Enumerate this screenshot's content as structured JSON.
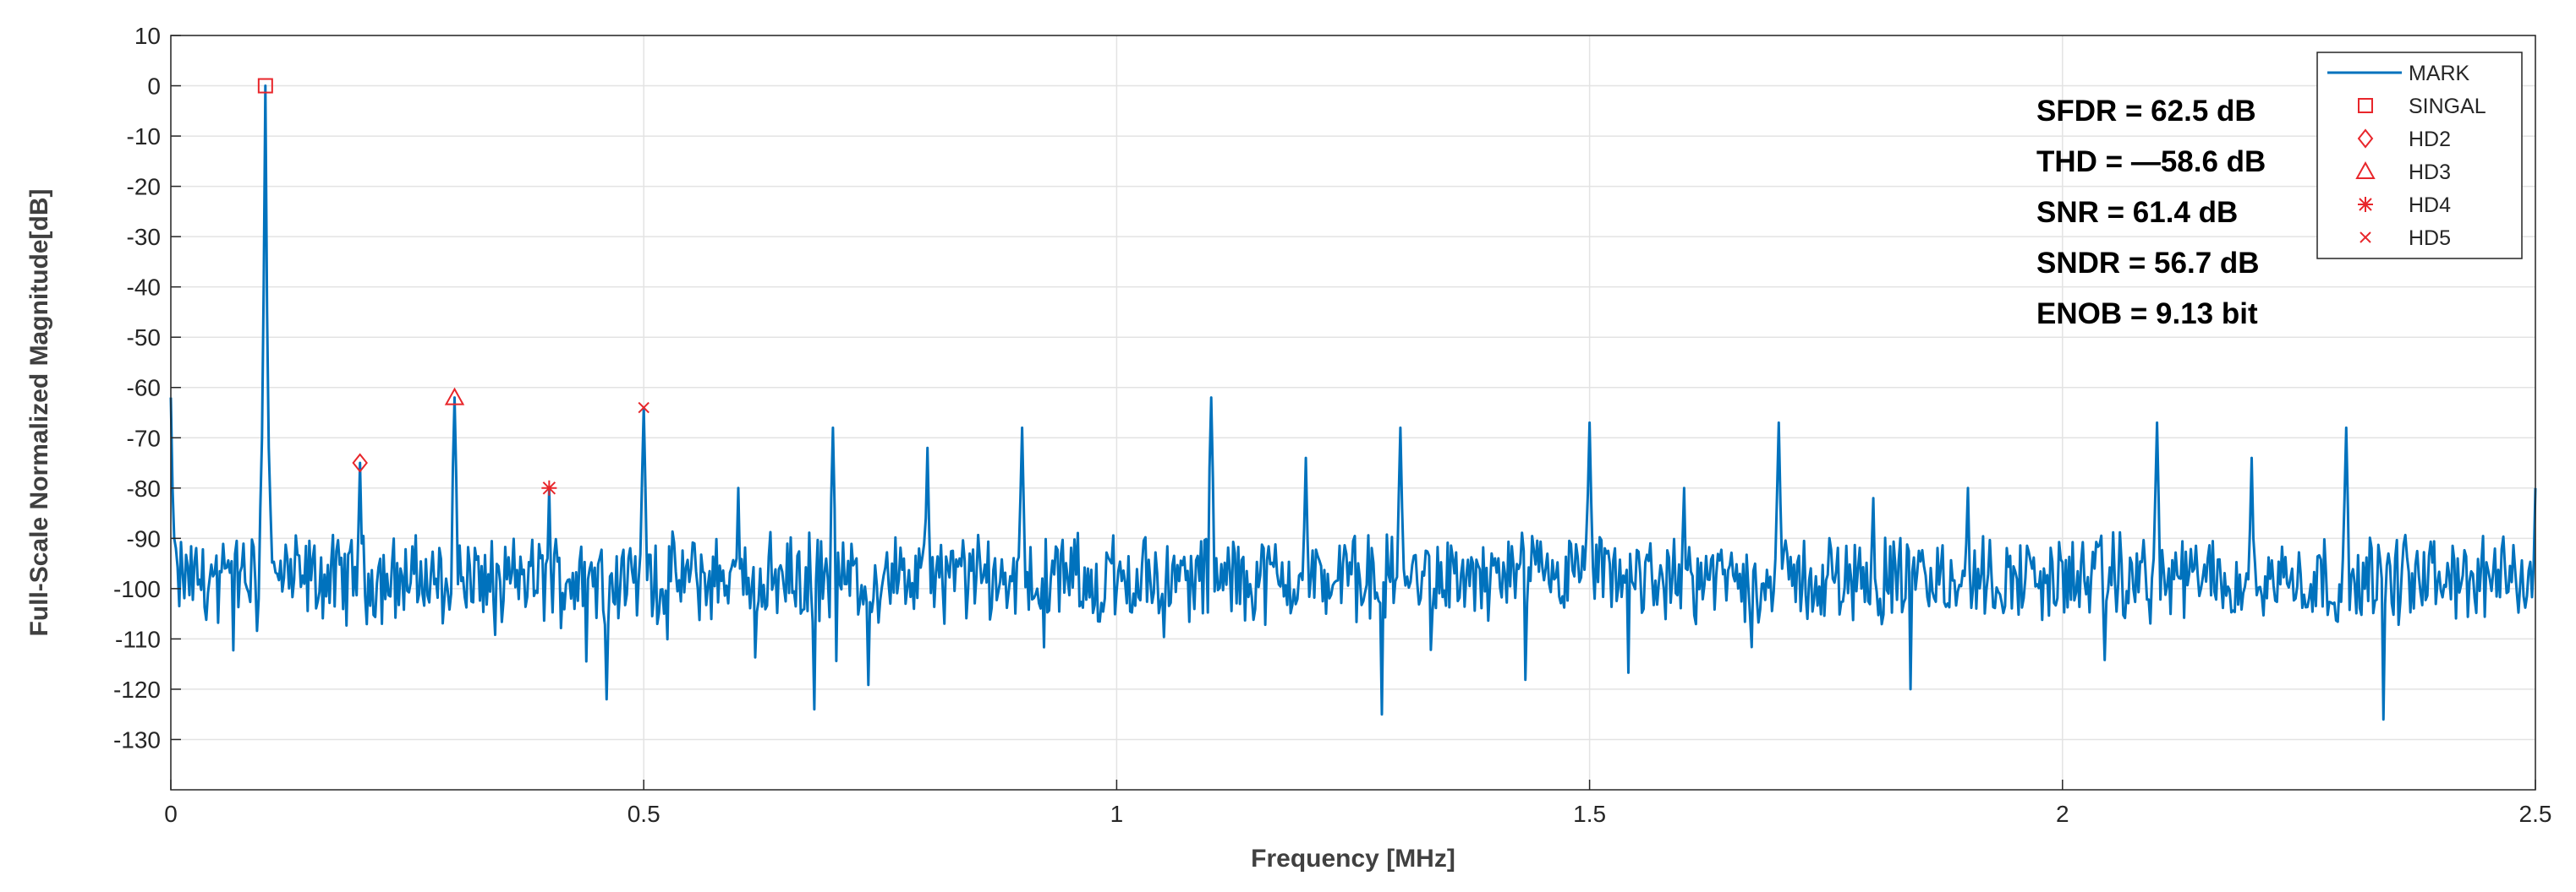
{
  "chart_data": {
    "type": "line",
    "xlabel": "Frequency [MHz]",
    "ylabel": "Full-Scale Normalized Magnitude[dB]",
    "xlim": [
      0,
      2.5
    ],
    "ylim": [
      -140,
      10
    ],
    "x_ticks": [
      0,
      0.5,
      1,
      1.5,
      2,
      2.5
    ],
    "x_tick_labels": [
      "0",
      "0.5",
      "1",
      "1.5",
      "2",
      "2.5"
    ],
    "y_ticks": [
      10,
      0,
      -10,
      -20,
      -30,
      -40,
      -50,
      -60,
      -70,
      -80,
      -90,
      -100,
      -110,
      -120,
      -130
    ],
    "y_tick_labels": [
      "10",
      "0",
      "-10",
      "-20",
      "-30",
      "-40",
      "-50",
      "-60",
      "-70",
      "-80",
      "-90",
      "-100",
      "-110",
      "-120",
      "-130"
    ],
    "grid": true,
    "legend_position": "top-right",
    "line_color": "#0072BD",
    "marker_color": "#E8262B",
    "series": [
      {
        "name": "MARK",
        "noise_floor_db": -98,
        "peaks": [
          {
            "x": 0.1,
            "y": 0
          },
          {
            "x": 0.2,
            "y": -75
          },
          {
            "x": 0.3,
            "y": -62
          },
          {
            "x": 0.4,
            "y": -80
          },
          {
            "x": 0.5,
            "y": -64
          },
          {
            "x": 0.6,
            "y": -80
          },
          {
            "x": 0.7,
            "y": -68
          },
          {
            "x": 0.8,
            "y": -72
          },
          {
            "x": 0.9,
            "y": -68
          },
          {
            "x": 1.1,
            "y": -62
          },
          {
            "x": 1.2,
            "y": -74
          },
          {
            "x": 1.3,
            "y": -68
          },
          {
            "x": 1.5,
            "y": -67
          },
          {
            "x": 1.6,
            "y": -80
          },
          {
            "x": 1.7,
            "y": -67
          },
          {
            "x": 1.8,
            "y": -82
          },
          {
            "x": 1.9,
            "y": -80
          },
          {
            "x": 2.1,
            "y": -67
          },
          {
            "x": 2.2,
            "y": -74
          },
          {
            "x": 2.3,
            "y": -68
          }
        ],
        "dips": [
          {
            "x": 0.68,
            "y": -124
          },
          {
            "x": 1.28,
            "y": -125
          },
          {
            "x": 2.34,
            "y": -126
          },
          {
            "x": 0.46,
            "y": -122
          },
          {
            "x": 1.84,
            "y": -120
          }
        ]
      }
    ],
    "markers": [
      {
        "name": "SINGAL",
        "symbol": "square",
        "x": 0.1,
        "y": 0
      },
      {
        "name": "HD2",
        "symbol": "diamond",
        "x": 0.2,
        "y": -75
      },
      {
        "name": "HD3",
        "symbol": "triangle",
        "x": 0.3,
        "y": -62
      },
      {
        "name": "HD4",
        "symbol": "asterisk",
        "x": 0.4,
        "y": -80
      },
      {
        "name": "HD5",
        "symbol": "x",
        "x": 0.5,
        "y": -64
      }
    ],
    "annotations": [
      "SFDR = 62.5 dB",
      "THD = —58.6 dB",
      "SNR = 61.4 dB",
      "SNDR = 56.7 dB",
      "ENOB = 9.13 bit"
    ]
  }
}
